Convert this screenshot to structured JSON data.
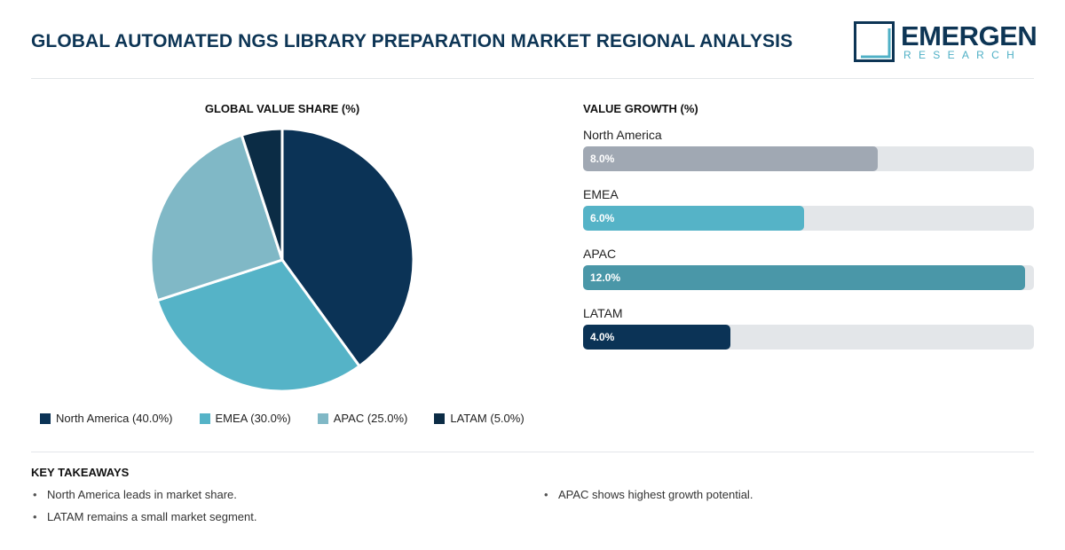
{
  "header": {
    "title": "GLOBAL AUTOMATED NGS LIBRARY PREPARATION MARKET REGIONAL ANALYSIS",
    "logo": {
      "word": "EMERGEN",
      "sub": "RESEARCH"
    }
  },
  "chart_data": [
    {
      "type": "pie",
      "title": "GLOBAL VALUE SHARE (%)",
      "categories": [
        "North America",
        "EMEA",
        "APAC",
        "LATAM"
      ],
      "values": [
        40.0,
        30.0,
        25.0,
        5.0
      ],
      "colors": [
        "#0b3356",
        "#55b3c7",
        "#80b8c6",
        "#0b2c45"
      ],
      "legend": {
        "placement": "bottom",
        "labels": [
          "North America (40.0%)",
          "EMEA (30.0%)",
          "APAC (25.0%)",
          "LATAM (5.0%)"
        ]
      }
    },
    {
      "type": "bar",
      "orientation": "horizontal",
      "title": "VALUE GROWTH (%)",
      "categories": [
        "North America",
        "EMEA",
        "APAC",
        "LATAM"
      ],
      "values": [
        8.0,
        6.0,
        12.0,
        4.0
      ],
      "value_labels": [
        "8.0%",
        "6.0%",
        "12.0%",
        "4.0%"
      ],
      "xlim": [
        0,
        12.25
      ],
      "colors": [
        "#a0a8b3",
        "#55b3c7",
        "#4a97a8",
        "#0b3356"
      ]
    }
  ],
  "takeaways": {
    "title": "KEY TAKEAWAYS",
    "left": [
      "North America leads in market share.",
      "LATAM remains a small market segment."
    ],
    "right": [
      "APAC shows highest growth potential."
    ]
  }
}
